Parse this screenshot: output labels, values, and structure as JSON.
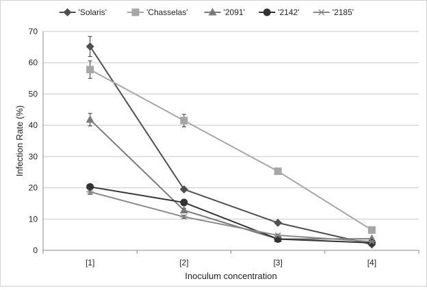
{
  "chart_data": {
    "type": "line",
    "title": "",
    "xlabel": "Inoculum concentration",
    "ylabel": "Infection Rate (%)",
    "categories": [
      "[1]",
      "[2]",
      "[3]",
      "[4]"
    ],
    "ylim": [
      0,
      70
    ],
    "yticks": [
      0,
      10,
      20,
      30,
      40,
      50,
      60,
      70
    ],
    "grid": true,
    "legend_position": "top",
    "series": [
      {
        "name": "'Solaris'",
        "marker": "diamond",
        "color": "#4f4f4f",
        "values": [
          65.2,
          19.5,
          8.8,
          1.9
        ],
        "error": [
          3.2,
          0.5,
          0.4,
          0.3
        ]
      },
      {
        "name": "'Chasselas'",
        "marker": "square",
        "color": "#a6a6a6",
        "values": [
          57.8,
          41.5,
          25.3,
          6.5
        ],
        "error": [
          2.8,
          2.0,
          0.9,
          0.4
        ]
      },
      {
        "name": "'2091'",
        "marker": "triangle",
        "color": "#7a7a7a",
        "values": [
          41.8,
          12.8,
          3.6,
          3.7
        ],
        "error": [
          2.0,
          0.6,
          0.4,
          0.3
        ]
      },
      {
        "name": "'2142'",
        "marker": "circle",
        "color": "#333333",
        "values": [
          20.3,
          15.3,
          3.6,
          2.4
        ],
        "error": [
          0.6,
          0.5,
          0.4,
          0.3
        ]
      },
      {
        "name": "'2185'",
        "marker": "asterisk",
        "color": "#8a8a8a",
        "values": [
          18.7,
          10.7,
          4.8,
          2.8
        ],
        "error": [
          0.8,
          0.5,
          0.4,
          0.3
        ]
      }
    ]
  }
}
